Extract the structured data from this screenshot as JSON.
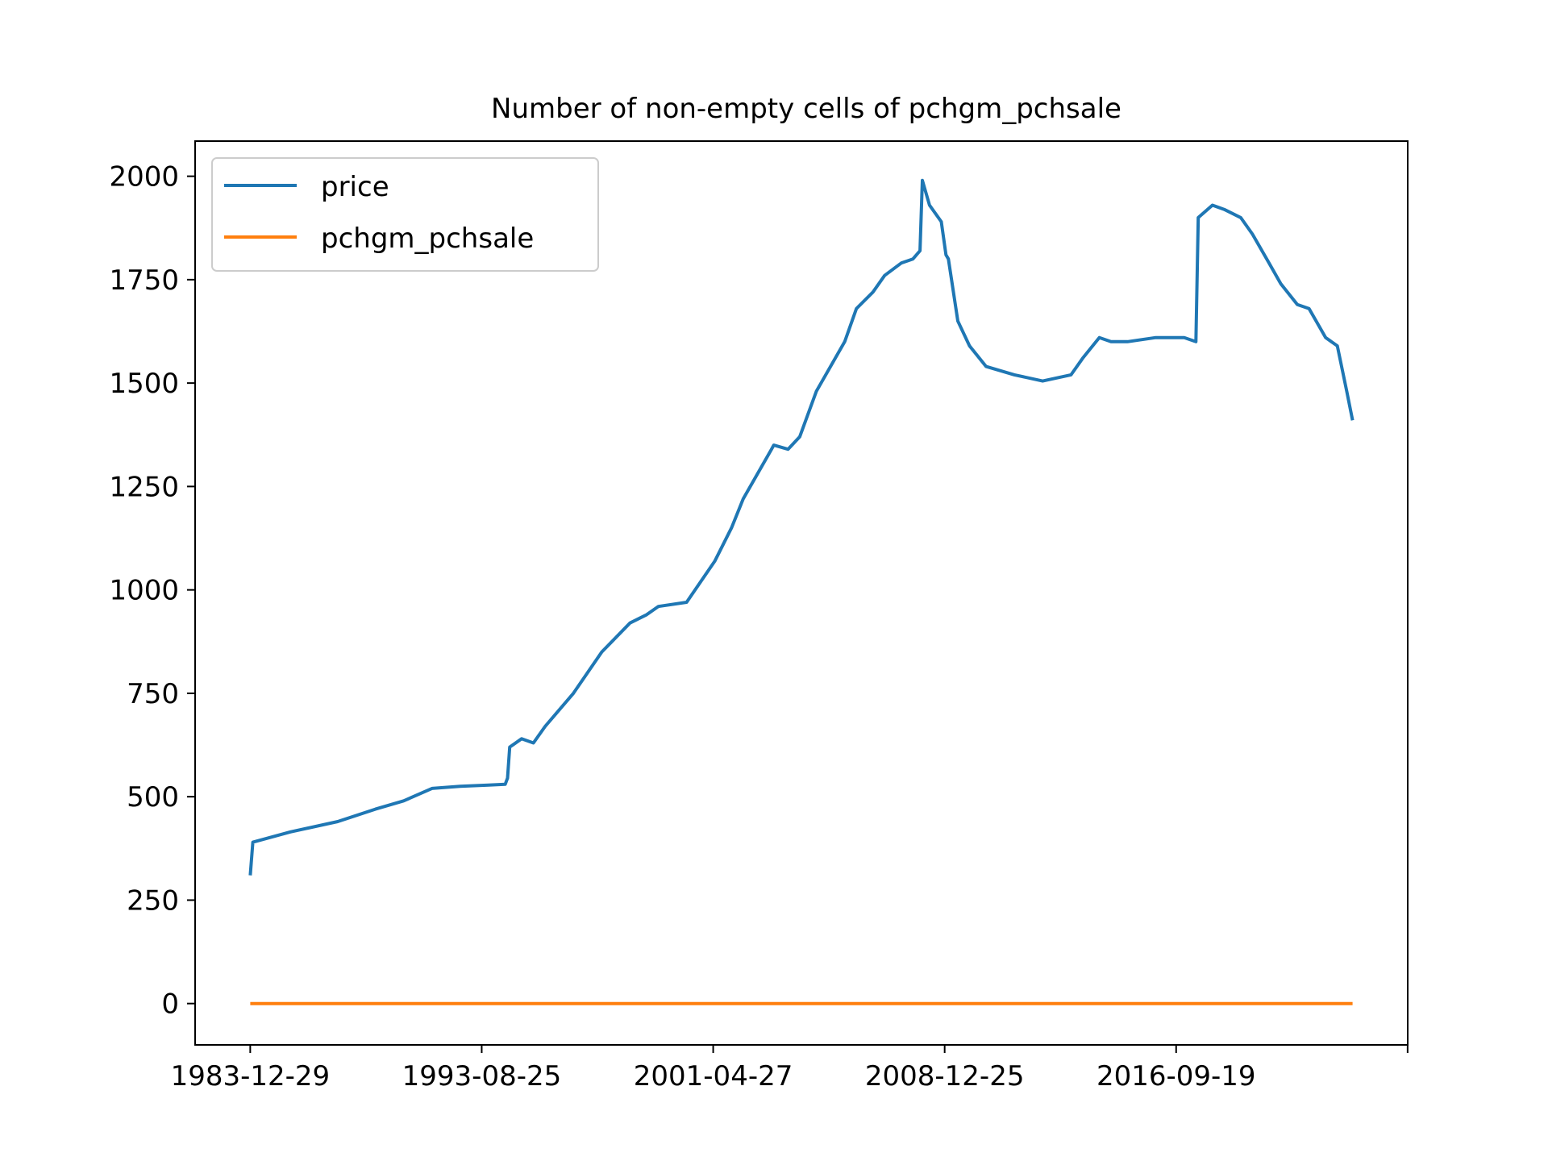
{
  "chart_data": {
    "type": "line",
    "title": "Number of non-empty cells of pchgm_pchsale",
    "xlabel": "",
    "ylabel": "",
    "ylim": [
      -100,
      2085
    ],
    "yticks": [
      0,
      250,
      500,
      750,
      1000,
      1250,
      1500,
      1750,
      2000
    ],
    "x_tick_labels": [
      "1983-12-29",
      "1993-08-25",
      "2001-04-27",
      "2008-12-25",
      "2016-09-19",
      ""
    ],
    "grid": false,
    "legend_position": "top-left",
    "x_dates": [
      "1983-12-29",
      "1984-02-01",
      "1985-06-01",
      "1987-02-01",
      "1988-06-01",
      "1989-06-01",
      "1990-06-01",
      "1991-06-01",
      "1992-06-01",
      "1993-01-01",
      "1993-02-01",
      "1993-03-01",
      "1993-08-01",
      "1994-01-01",
      "1994-06-01",
      "1995-06-01",
      "1996-06-01",
      "1997-06-01",
      "1998-01-01",
      "1998-06-01",
      "1999-06-01",
      "2000-06-01",
      "2001-01-01",
      "2001-06-01",
      "2002-06-01",
      "2002-07-01",
      "2003-01-01",
      "2003-06-01",
      "2004-01-01",
      "2005-01-01",
      "2005-06-01",
      "2006-01-01",
      "2006-06-01",
      "2007-01-01",
      "2007-06-01",
      "2007-09-01",
      "2007-10-01",
      "2008-01-01",
      "2008-06-01",
      "2008-08-01",
      "2008-09-01",
      "2009-01-01",
      "2009-06-01",
      "2010-01-01",
      "2011-01-01",
      "2012-01-01",
      "2013-01-01",
      "2013-06-01",
      "2014-01-01",
      "2014-06-01",
      "2015-01-01",
      "2016-01-01",
      "2017-01-01",
      "2017-06-01",
      "2017-07-01",
      "2018-01-01",
      "2018-06-01",
      "2019-01-01",
      "2019-06-01",
      "2020-01-01",
      "2020-06-01",
      "2021-01-01",
      "2021-06-01",
      "2022-01-01",
      "2022-06-01",
      "2022-10-01",
      "2022-12-15"
    ],
    "series": [
      {
        "name": "price",
        "color": "#1f77b4",
        "values": [
          310,
          390,
          415,
          440,
          470,
          490,
          520,
          525,
          528,
          530,
          545,
          620,
          640,
          630,
          670,
          750,
          850,
          920,
          940,
          960,
          970,
          1070,
          1150,
          1220,
          1340,
          1350,
          1340,
          1370,
          1480,
          1600,
          1680,
          1720,
          1760,
          1790,
          1800,
          1820,
          1990,
          1930,
          1890,
          1810,
          1800,
          1650,
          1590,
          1540,
          1520,
          1505,
          1520,
          1560,
          1610,
          1600,
          1600,
          1610,
          1610,
          1600,
          1900,
          1930,
          1920,
          1900,
          1860,
          1790,
          1740,
          1690,
          1680,
          1610,
          1590,
          1480,
          1410
        ]
      },
      {
        "name": "pchgm_pchsale",
        "color": "#ff7f0e",
        "values": [
          0,
          0,
          0,
          0,
          0,
          0,
          0,
          0,
          0,
          0,
          0,
          0,
          0,
          0,
          0,
          0,
          0,
          0,
          0,
          0,
          0,
          0,
          0,
          0,
          0,
          0,
          0,
          0,
          0,
          0,
          0,
          0,
          0,
          0,
          0,
          0,
          0,
          0,
          0,
          0,
          0,
          0,
          0,
          0,
          0,
          0,
          0,
          0,
          0,
          0,
          0,
          0,
          0,
          0,
          0,
          0,
          0,
          0,
          0,
          0,
          0,
          0,
          0,
          0,
          0,
          0,
          0
        ]
      }
    ]
  }
}
